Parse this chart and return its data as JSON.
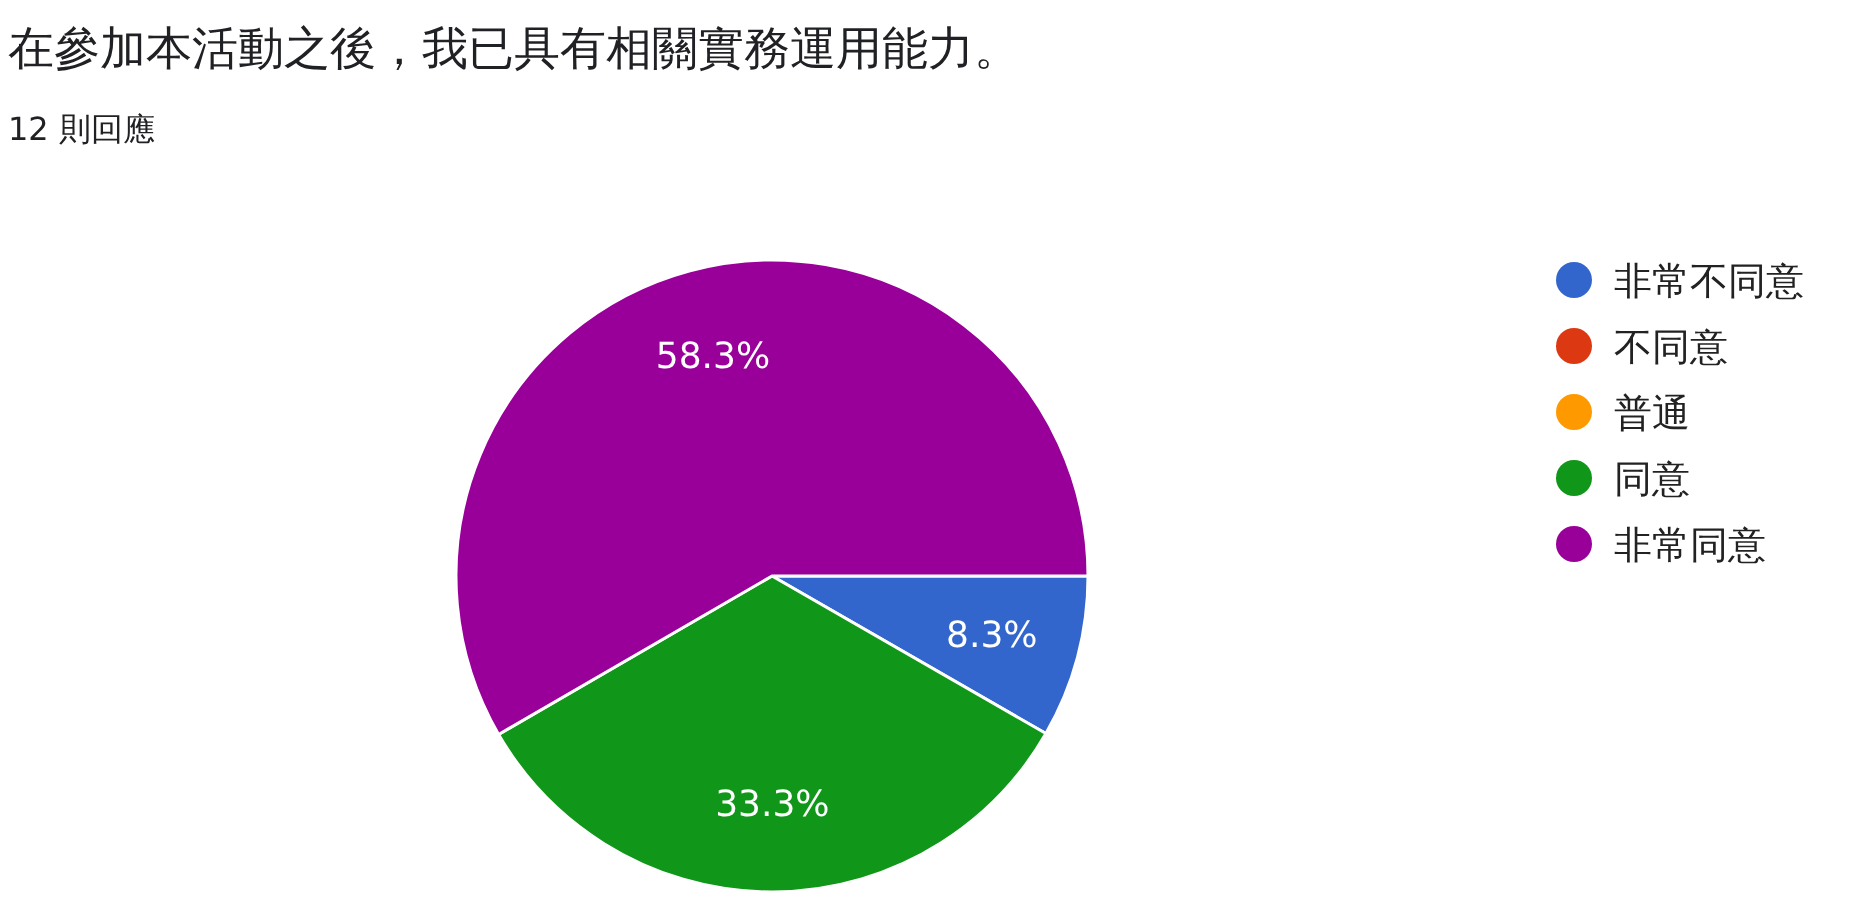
{
  "chart_data": {
    "type": "pie",
    "title": "在參加本活動之後，我已具有相關實務運用能力。",
    "subtitle": "12 則回應",
    "categories": [
      "非常不同意",
      "不同意",
      "普通",
      "同意",
      "非常同意"
    ],
    "values": [
      8.3,
      0,
      0,
      33.3,
      58.3
    ],
    "colors": [
      "#3366cc",
      "#dc3912",
      "#ff9900",
      "#109618",
      "#990099"
    ],
    "value_labels": [
      "8.3%",
      null,
      null,
      "33.3%",
      "58.3%"
    ],
    "legend": "right"
  }
}
